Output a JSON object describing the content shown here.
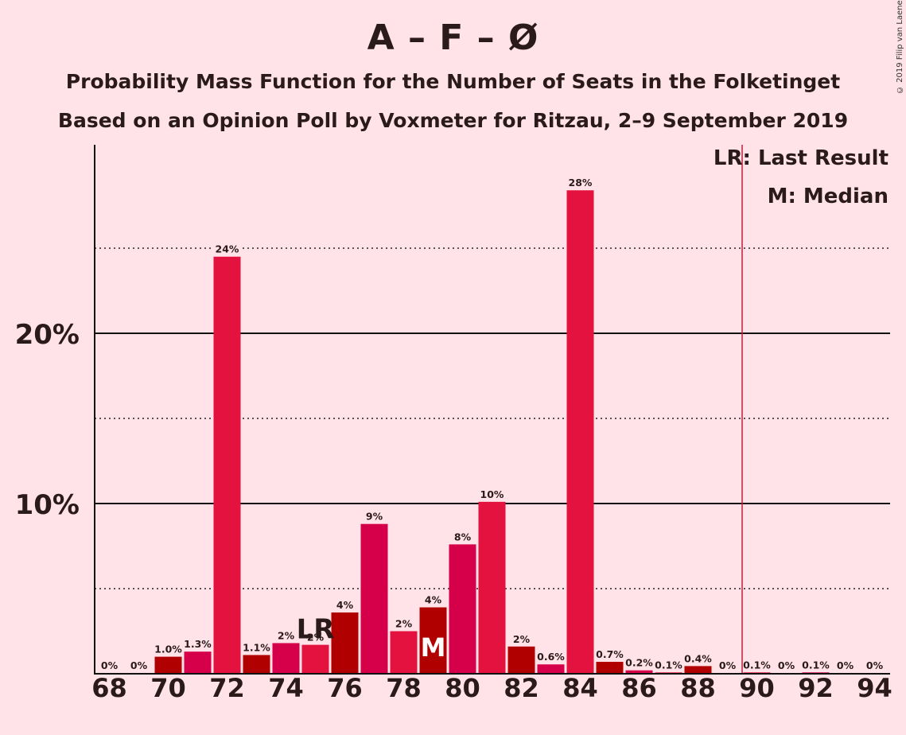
{
  "title": "A – F – Ø",
  "subtitle_1": "Probability Mass Function for the Number of Seats in the Folketinget",
  "subtitle_2": "Based on an Opinion Poll by Voxmeter for Ritzau, 2–9 September 2019",
  "copyright": "© 2019 Filip van Laenen",
  "legend": {
    "last_result": "LR: Last Result",
    "median": "M: Median"
  },
  "colors": {
    "background": "#FFE3E8",
    "bar_primary": "#E3123E",
    "bar_secondary": "#B00000",
    "bar_tertiary": "#D6004A",
    "majority_line": "#C41E3A"
  },
  "chart_data": {
    "type": "bar",
    "x": [
      68,
      69,
      70,
      71,
      72,
      73,
      74,
      75,
      76,
      77,
      78,
      79,
      80,
      81,
      82,
      83,
      84,
      85,
      86,
      87,
      88,
      89,
      90,
      91,
      92,
      93,
      94
    ],
    "values": [
      0,
      0,
      1.0,
      1.3,
      24.5,
      1.1,
      1.8,
      1.7,
      3.6,
      8.8,
      2.5,
      3.9,
      7.6,
      10.1,
      1.6,
      0.55,
      28.4,
      0.7,
      0.2,
      0.08,
      0.45,
      0,
      0.08,
      0,
      0.08,
      0,
      0
    ],
    "value_labels": [
      "0%",
      "0%",
      "1.0%",
      "1.3%",
      "24%",
      "1.1%",
      "2%",
      "2%",
      "4%",
      "9%",
      "2%",
      "4%",
      "8%",
      "10%",
      "2%",
      "0.6%",
      "28%",
      "0.7%",
      "0.2%",
      "0.1%",
      "0.4%",
      "0%",
      "0.1%",
      "0%",
      "0.1%",
      "0%",
      "0%"
    ],
    "bar_colors": [
      "primary",
      "primary",
      "secondary",
      "tertiary",
      "primary",
      "secondary",
      "tertiary",
      "primary",
      "secondary",
      "tertiary",
      "primary",
      "secondary",
      "tertiary",
      "primary",
      "secondary",
      "tertiary",
      "primary",
      "secondary",
      "tertiary",
      "primary",
      "secondary",
      "tertiary",
      "primary",
      "secondary",
      "tertiary",
      "primary",
      "secondary"
    ],
    "x_tick_labels": [
      "68",
      "70",
      "72",
      "74",
      "76",
      "78",
      "80",
      "82",
      "84",
      "86",
      "88",
      "90",
      "92",
      "94"
    ],
    "y_tick_labels": [
      "10%",
      "20%"
    ],
    "y_ticks": [
      10,
      20
    ],
    "y_minor_ticks": [
      5,
      15,
      25
    ],
    "ylim": [
      0,
      30
    ],
    "last_result": {
      "seat": 75,
      "label": "LR"
    },
    "median": {
      "seat": 79,
      "label": "M"
    },
    "majority_line_seat": 89.5,
    "grid": true,
    "legend_position": "top-right"
  }
}
